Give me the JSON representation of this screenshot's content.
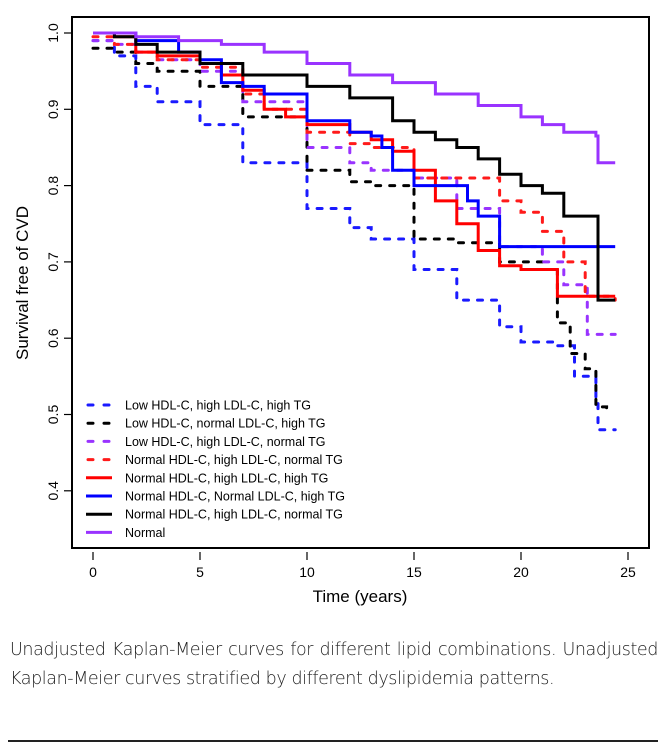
{
  "chart_data": {
    "type": "line",
    "subtype": "kaplan-meier step",
    "title": "",
    "xlabel": "Time (years)",
    "ylabel": "Survival free of CVD",
    "xlim": [
      0,
      25
    ],
    "ylim": [
      0.4,
      1.0
    ],
    "x_ticks": [
      0,
      5,
      10,
      15,
      20,
      25
    ],
    "x_tick_labels": [
      "0",
      "5",
      "10",
      "15",
      "20",
      "25"
    ],
    "y_ticks": [
      0.4,
      0.5,
      0.6,
      0.7,
      0.8,
      0.9,
      1.0
    ],
    "y_tick_labels": [
      "0.4",
      "0.5",
      "0.6",
      "0.7",
      "0.8",
      "0.9",
      "1.0"
    ],
    "grid": false,
    "legend_position": "bottom-left",
    "series": [
      {
        "name": "Low HDL-C, high LDL-C, high TG",
        "color": "#1a1aff",
        "style": "dashed",
        "x": [
          0,
          1,
          2,
          3,
          5,
          7,
          10,
          12,
          13,
          15,
          17,
          19,
          20,
          21.5,
          22.5,
          23.5,
          23.6,
          24.4
        ],
        "y": [
          0.99,
          0.97,
          0.93,
          0.91,
          0.88,
          0.83,
          0.77,
          0.745,
          0.73,
          0.69,
          0.65,
          0.615,
          0.595,
          0.59,
          0.55,
          0.52,
          0.48,
          0.48
        ]
      },
      {
        "name": "Low HDL-C, normal LDL-C, high TG",
        "color": "#000000",
        "style": "dashed",
        "x": [
          0,
          1,
          2,
          3,
          5,
          7,
          10,
          12,
          13,
          15,
          17,
          19,
          21,
          21.7,
          22.3,
          23,
          23.5,
          24
        ],
        "y": [
          0.98,
          0.975,
          0.96,
          0.95,
          0.93,
          0.89,
          0.82,
          0.805,
          0.8,
          0.73,
          0.725,
          0.7,
          0.69,
          0.62,
          0.58,
          0.56,
          0.51,
          0.5
        ]
      },
      {
        "name": "Low HDL-C, high LDL-C, normal TG",
        "color": "#9933ff",
        "style": "dashed",
        "x": [
          0,
          1,
          2,
          3,
          5,
          7,
          10,
          12,
          13,
          15,
          17,
          19,
          21,
          22,
          23,
          23.1,
          24.4
        ],
        "y": [
          0.99,
          0.985,
          0.975,
          0.965,
          0.95,
          0.91,
          0.85,
          0.83,
          0.82,
          0.81,
          0.77,
          0.72,
          0.7,
          0.67,
          0.67,
          0.605,
          0.605
        ]
      },
      {
        "name": "Normal HDL-C, high LDL-C, normal TG",
        "color": "#ff1a1a",
        "style": "dashed",
        "x": [
          0,
          1,
          2,
          3,
          5,
          7,
          8,
          10,
          12,
          13,
          15,
          17,
          19,
          20,
          21,
          22,
          23,
          24.4
        ],
        "y": [
          0.995,
          0.985,
          0.975,
          0.965,
          0.955,
          0.92,
          0.9,
          0.87,
          0.855,
          0.85,
          0.81,
          0.81,
          0.78,
          0.765,
          0.74,
          0.7,
          0.655,
          0.65
        ]
      },
      {
        "name": "Normal HDL-C, high LDL-C, high TG",
        "color": "#ff0000",
        "style": "solid",
        "x": [
          0,
          1,
          2,
          3,
          5,
          6,
          7,
          8,
          9,
          10,
          12,
          13,
          14,
          15,
          16,
          17,
          18,
          19,
          20,
          21.5,
          21.7,
          24.4
        ],
        "y": [
          1.0,
          0.995,
          0.975,
          0.97,
          0.96,
          0.945,
          0.925,
          0.9,
          0.89,
          0.88,
          0.87,
          0.86,
          0.845,
          0.82,
          0.78,
          0.75,
          0.715,
          0.695,
          0.69,
          0.69,
          0.655,
          0.655
        ]
      },
      {
        "name": "Normal HDL-C, Normal LDL-C, high TG",
        "color": "#0000ff",
        "style": "solid",
        "x": [
          0,
          1,
          2,
          4,
          5,
          6,
          7,
          8,
          10,
          12,
          13,
          13.5,
          14,
          15,
          17,
          17.5,
          18,
          19,
          24.4
        ],
        "y": [
          1.0,
          1.0,
          0.99,
          0.975,
          0.965,
          0.935,
          0.93,
          0.92,
          0.885,
          0.87,
          0.865,
          0.85,
          0.82,
          0.8,
          0.8,
          0.78,
          0.76,
          0.72,
          0.72
        ]
      },
      {
        "name": "Normal HDL-C, high LDL-C, normal TG",
        "color": "#000000",
        "style": "solid",
        "x": [
          0,
          1,
          2,
          3,
          5,
          7,
          10,
          12,
          14,
          15,
          16,
          17,
          18,
          19,
          20,
          21,
          22,
          23.5,
          23.6,
          24.4
        ],
        "y": [
          1.0,
          0.995,
          0.985,
          0.975,
          0.96,
          0.945,
          0.93,
          0.915,
          0.885,
          0.87,
          0.86,
          0.85,
          0.835,
          0.815,
          0.8,
          0.79,
          0.76,
          0.76,
          0.65,
          0.65
        ]
      },
      {
        "name": "Normal",
        "color": "#9933ff",
        "style": "solid",
        "x": [
          0,
          2,
          4,
          6,
          8,
          10,
          12,
          14,
          16,
          18,
          20,
          21,
          22,
          23.5,
          23.6,
          24.4
        ],
        "y": [
          1.0,
          0.995,
          0.99,
          0.985,
          0.975,
          0.96,
          0.945,
          0.935,
          0.92,
          0.905,
          0.89,
          0.88,
          0.87,
          0.865,
          0.83,
          0.83
        ]
      }
    ]
  },
  "caption": {
    "text": "Unadjusted Kaplan-Meier curves for different lipid combinations. Unadjusted Kaplan-Meier curves stratified by different dyslipidemia patterns."
  }
}
